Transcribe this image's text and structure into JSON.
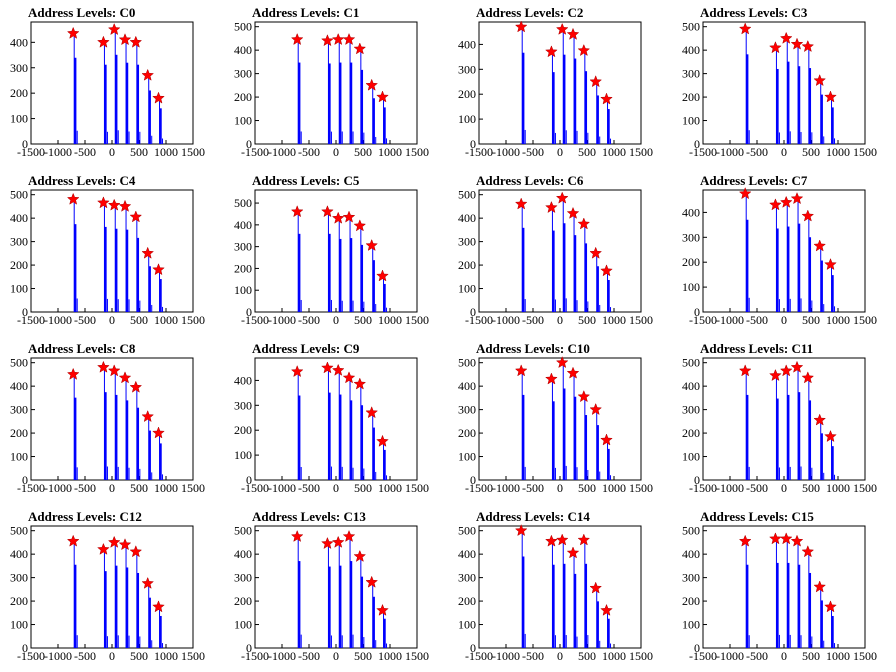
{
  "xticks": [
    -1500,
    -1000,
    -500,
    0,
    500,
    1000,
    1500
  ],
  "xlim": [
    -1500,
    1500
  ],
  "colors": {
    "bars": "#0000ff",
    "markers": "#ff0000",
    "axes": "#000000"
  },
  "chart_data": [
    {
      "type": "bar",
      "title": "Address Levels: C0",
      "ylim": [
        0,
        480
      ],
      "yticks": [
        0,
        100,
        200,
        300,
        400
      ],
      "peaks": [
        {
          "x": -700,
          "y": 435
        },
        {
          "x": -140,
          "y": 400
        },
        {
          "x": 60,
          "y": 450
        },
        {
          "x": 260,
          "y": 410
        },
        {
          "x": 460,
          "y": 400
        },
        {
          "x": 680,
          "y": 270
        },
        {
          "x": 880,
          "y": 180
        }
      ]
    },
    {
      "type": "bar",
      "title": "Address Levels: C1",
      "ylim": [
        0,
        520
      ],
      "yticks": [
        0,
        100,
        200,
        300,
        400,
        500
      ],
      "peaks": [
        {
          "x": -700,
          "y": 445
        },
        {
          "x": -140,
          "y": 440
        },
        {
          "x": 60,
          "y": 445
        },
        {
          "x": 260,
          "y": 445
        },
        {
          "x": 460,
          "y": 405
        },
        {
          "x": 680,
          "y": 250
        },
        {
          "x": 880,
          "y": 200
        }
      ]
    },
    {
      "type": "bar",
      "title": "Address Levels: C2",
      "ylim": [
        0,
        490
      ],
      "yticks": [
        0,
        100,
        200,
        300,
        400
      ],
      "peaks": [
        {
          "x": -700,
          "y": 470
        },
        {
          "x": -140,
          "y": 370
        },
        {
          "x": 60,
          "y": 460
        },
        {
          "x": 260,
          "y": 440
        },
        {
          "x": 460,
          "y": 375
        },
        {
          "x": 680,
          "y": 250
        },
        {
          "x": 880,
          "y": 180
        }
      ]
    },
    {
      "type": "bar",
      "title": "Address Levels: C3",
      "ylim": [
        0,
        520
      ],
      "yticks": [
        0,
        100,
        200,
        300,
        400,
        500
      ],
      "peaks": [
        {
          "x": -700,
          "y": 490
        },
        {
          "x": -140,
          "y": 410
        },
        {
          "x": 60,
          "y": 450
        },
        {
          "x": 260,
          "y": 425
        },
        {
          "x": 460,
          "y": 415
        },
        {
          "x": 680,
          "y": 270
        },
        {
          "x": 880,
          "y": 200
        }
      ]
    },
    {
      "type": "bar",
      "title": "Address Levels: C4",
      "ylim": [
        0,
        520
      ],
      "yticks": [
        0,
        100,
        200,
        300,
        400,
        500
      ],
      "peaks": [
        {
          "x": -700,
          "y": 480
        },
        {
          "x": -140,
          "y": 465
        },
        {
          "x": 60,
          "y": 455
        },
        {
          "x": 260,
          "y": 450
        },
        {
          "x": 460,
          "y": 405
        },
        {
          "x": 680,
          "y": 250
        },
        {
          "x": 880,
          "y": 180
        }
      ]
    },
    {
      "type": "bar",
      "title": "Address Levels: C5",
      "ylim": [
        0,
        560
      ],
      "yticks": [
        0,
        100,
        200,
        300,
        400,
        500
      ],
      "peaks": [
        {
          "x": -700,
          "y": 460
        },
        {
          "x": -140,
          "y": 460
        },
        {
          "x": 60,
          "y": 430
        },
        {
          "x": 260,
          "y": 435
        },
        {
          "x": 460,
          "y": 395
        },
        {
          "x": 680,
          "y": 305
        },
        {
          "x": 880,
          "y": 165
        }
      ]
    },
    {
      "type": "bar",
      "title": "Address Levels: C6",
      "ylim": [
        0,
        520
      ],
      "yticks": [
        0,
        100,
        200,
        300,
        400,
        500
      ],
      "peaks": [
        {
          "x": -700,
          "y": 460
        },
        {
          "x": -140,
          "y": 445
        },
        {
          "x": 60,
          "y": 485
        },
        {
          "x": 260,
          "y": 420
        },
        {
          "x": 460,
          "y": 375
        },
        {
          "x": 680,
          "y": 250
        },
        {
          "x": 880,
          "y": 175
        }
      ]
    },
    {
      "type": "bar",
      "title": "Address Levels: C7",
      "ylim": [
        0,
        490
      ],
      "yticks": [
        0,
        100,
        200,
        300,
        400
      ],
      "peaks": [
        {
          "x": -700,
          "y": 475
        },
        {
          "x": -140,
          "y": 430
        },
        {
          "x": 60,
          "y": 440
        },
        {
          "x": 260,
          "y": 455
        },
        {
          "x": 460,
          "y": 385
        },
        {
          "x": 680,
          "y": 265
        },
        {
          "x": 880,
          "y": 190
        }
      ]
    },
    {
      "type": "bar",
      "title": "Address Levels: C8",
      "ylim": [
        0,
        520
      ],
      "yticks": [
        0,
        100,
        200,
        300,
        400,
        500
      ],
      "peaks": [
        {
          "x": -700,
          "y": 450
        },
        {
          "x": -140,
          "y": 480
        },
        {
          "x": 60,
          "y": 465
        },
        {
          "x": 260,
          "y": 435
        },
        {
          "x": 460,
          "y": 395
        },
        {
          "x": 680,
          "y": 270
        },
        {
          "x": 880,
          "y": 200
        }
      ]
    },
    {
      "type": "bar",
      "title": "Address Levels: C9",
      "ylim": [
        0,
        490
      ],
      "yticks": [
        0,
        100,
        200,
        300,
        400
      ],
      "peaks": [
        {
          "x": -700,
          "y": 435
        },
        {
          "x": -140,
          "y": 450
        },
        {
          "x": 60,
          "y": 440
        },
        {
          "x": 260,
          "y": 410
        },
        {
          "x": 460,
          "y": 385
        },
        {
          "x": 680,
          "y": 270
        },
        {
          "x": 880,
          "y": 155
        }
      ]
    },
    {
      "type": "bar",
      "title": "Address Levels: C10",
      "ylim": [
        0,
        520
      ],
      "yticks": [
        0,
        100,
        200,
        300,
        400,
        500
      ],
      "peaks": [
        {
          "x": -700,
          "y": 465
        },
        {
          "x": -140,
          "y": 430
        },
        {
          "x": 60,
          "y": 500
        },
        {
          "x": 260,
          "y": 455
        },
        {
          "x": 460,
          "y": 355
        },
        {
          "x": 680,
          "y": 300
        },
        {
          "x": 880,
          "y": 170
        }
      ]
    },
    {
      "type": "bar",
      "title": "Address Levels: C11",
      "ylim": [
        0,
        520
      ],
      "yticks": [
        0,
        100,
        200,
        300,
        400,
        500
      ],
      "peaks": [
        {
          "x": -700,
          "y": 465
        },
        {
          "x": -140,
          "y": 445
        },
        {
          "x": 60,
          "y": 465
        },
        {
          "x": 260,
          "y": 480
        },
        {
          "x": 460,
          "y": 435
        },
        {
          "x": 680,
          "y": 255
        },
        {
          "x": 880,
          "y": 185
        }
      ]
    },
    {
      "type": "bar",
      "title": "Address Levels: C12",
      "ylim": [
        0,
        520
      ],
      "yticks": [
        0,
        100,
        200,
        300,
        400,
        500
      ],
      "peaks": [
        {
          "x": -700,
          "y": 455
        },
        {
          "x": -140,
          "y": 420
        },
        {
          "x": 60,
          "y": 450
        },
        {
          "x": 260,
          "y": 440
        },
        {
          "x": 460,
          "y": 410
        },
        {
          "x": 680,
          "y": 275
        },
        {
          "x": 880,
          "y": 175
        }
      ]
    },
    {
      "type": "bar",
      "title": "Address Levels: C13",
      "ylim": [
        0,
        520
      ],
      "yticks": [
        0,
        100,
        200,
        300,
        400,
        500
      ],
      "peaks": [
        {
          "x": -700,
          "y": 475
        },
        {
          "x": -140,
          "y": 445
        },
        {
          "x": 60,
          "y": 450
        },
        {
          "x": 260,
          "y": 475
        },
        {
          "x": 460,
          "y": 390
        },
        {
          "x": 680,
          "y": 280
        },
        {
          "x": 880,
          "y": 160
        }
      ]
    },
    {
      "type": "bar",
      "title": "Address Levels: C14",
      "ylim": [
        0,
        520
      ],
      "yticks": [
        0,
        100,
        200,
        300,
        400,
        500
      ],
      "peaks": [
        {
          "x": -700,
          "y": 500
        },
        {
          "x": -140,
          "y": 455
        },
        {
          "x": 60,
          "y": 460
        },
        {
          "x": 260,
          "y": 405
        },
        {
          "x": 460,
          "y": 460
        },
        {
          "x": 680,
          "y": 255
        },
        {
          "x": 880,
          "y": 160
        }
      ]
    },
    {
      "type": "bar",
      "title": "Address Levels: C15",
      "ylim": [
        0,
        520
      ],
      "yticks": [
        0,
        100,
        200,
        300,
        400,
        500
      ],
      "peaks": [
        {
          "x": -700,
          "y": 455
        },
        {
          "x": -140,
          "y": 465
        },
        {
          "x": 60,
          "y": 465
        },
        {
          "x": 260,
          "y": 455
        },
        {
          "x": 460,
          "y": 410
        },
        {
          "x": 680,
          "y": 260
        },
        {
          "x": 880,
          "y": 175
        }
      ]
    }
  ]
}
